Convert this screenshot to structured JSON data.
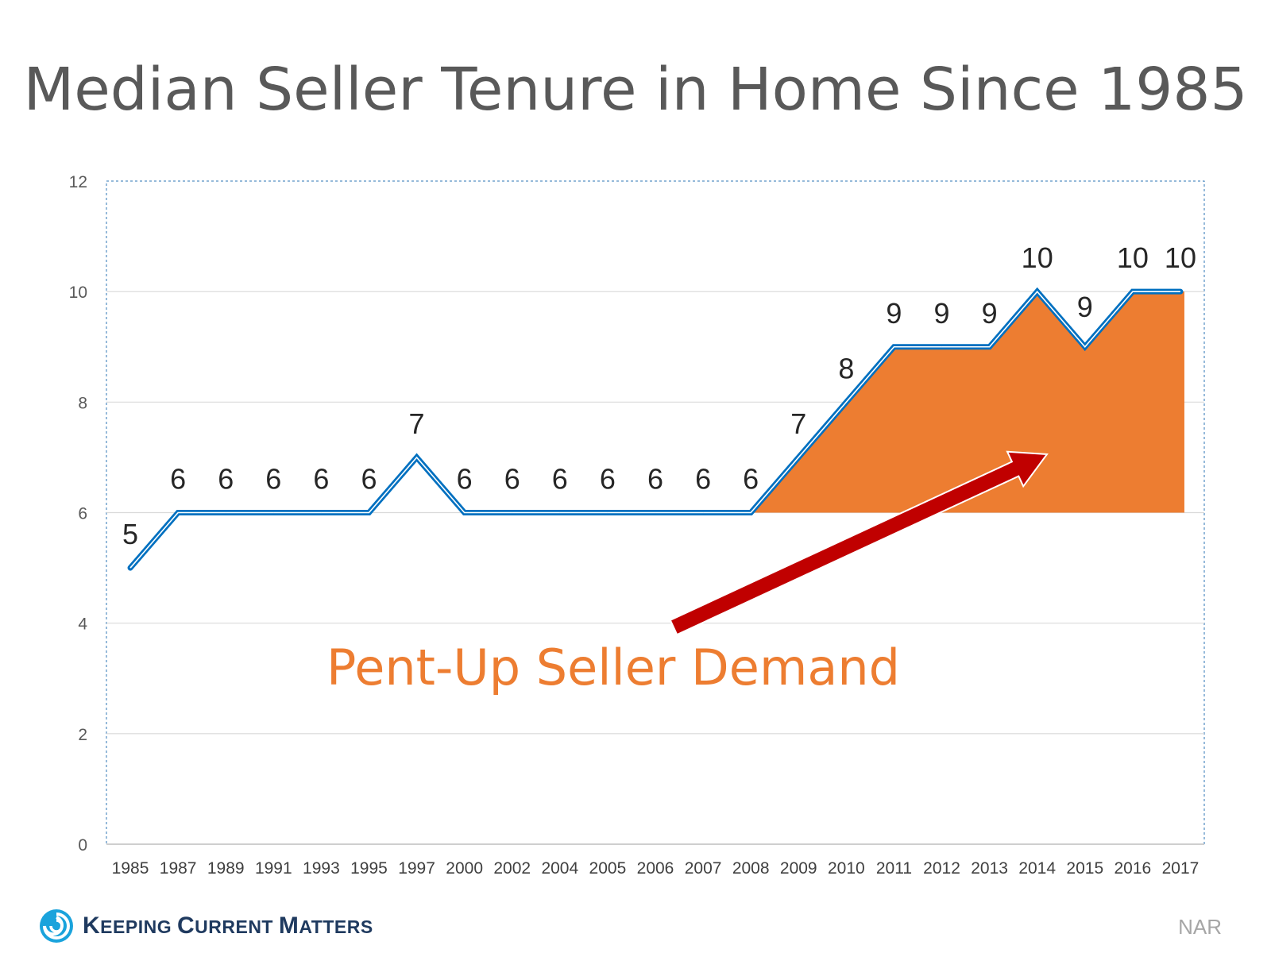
{
  "title": "Median Seller Tenure in Home Since 1985",
  "chart_data": {
    "type": "line",
    "title": "Median Seller Tenure in Home Since 1985",
    "categories": [
      "1985",
      "1987",
      "1989",
      "1991",
      "1993",
      "1995",
      "1997",
      "2000",
      "2002",
      "2004",
      "2005",
      "2006",
      "2007",
      "2008",
      "2009",
      "2010",
      "2011",
      "2012",
      "2013",
      "2014",
      "2015",
      "2016",
      "2017"
    ],
    "series": [
      {
        "values": [
          5,
          6,
          6,
          6,
          6,
          6,
          7,
          6,
          6,
          6,
          6,
          6,
          6,
          6,
          7,
          8,
          9,
          9,
          9,
          10,
          9,
          10,
          10
        ],
        "color": "#0070c0"
      }
    ],
    "data_labels": [
      "5",
      "6",
      "6",
      "6",
      "6",
      "6",
      "7",
      "6",
      "6",
      "6",
      "6",
      "6",
      "6",
      "6",
      "7",
      "8",
      "9",
      "9",
      "9",
      "10",
      "9",
      "10",
      "10"
    ],
    "yticks": [
      "0",
      "2",
      "4",
      "6",
      "8",
      "10",
      "12"
    ],
    "ylim": [
      0,
      12
    ],
    "grid": true,
    "shaded_area": {
      "from": "2008",
      "to": "2017",
      "baseline": 6,
      "color": "#ed7d31"
    },
    "annotation": {
      "text": "Pent-Up Seller Demand",
      "color": "#ed7d31",
      "arrow_color": "#c00000"
    }
  },
  "brand": {
    "name": "Keeping Current Matters"
  },
  "source": "NAR"
}
